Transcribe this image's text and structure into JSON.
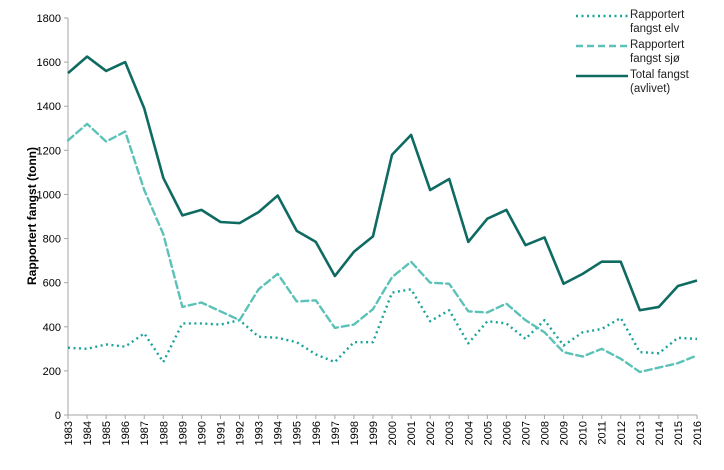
{
  "chart_data": {
    "type": "line",
    "title": "",
    "xlabel": "",
    "ylabel": "Rapportert fangst (tonn)",
    "ylim": [
      0,
      1800
    ],
    "yticks": [
      0,
      200,
      400,
      600,
      800,
      1000,
      1200,
      1400,
      1600,
      1800
    ],
    "grid": false,
    "legend_position": "top-right",
    "x": [
      1983,
      1984,
      1985,
      1986,
      1987,
      1988,
      1989,
      1990,
      1991,
      1992,
      1993,
      1994,
      1995,
      1996,
      1997,
      1998,
      1999,
      2000,
      2001,
      2002,
      2003,
      2004,
      2005,
      2006,
      2007,
      2008,
      2009,
      2010,
      2011,
      2012,
      2013,
      2014,
      2015,
      2016
    ],
    "series": [
      {
        "name": "Rapportert fangst elv",
        "style": "dotted",
        "color": "#1aa39a",
        "values": [
          305,
          300,
          320,
          310,
          370,
          240,
          415,
          415,
          410,
          430,
          355,
          350,
          330,
          275,
          240,
          330,
          330,
          555,
          570,
          425,
          475,
          325,
          425,
          415,
          345,
          430,
          315,
          375,
          390,
          440,
          285,
          280,
          350,
          345
        ]
      },
      {
        "name": "Rapportert fangst sjø",
        "style": "dashed",
        "color": "#5cc2b8",
        "values": [
          1245,
          1320,
          1240,
          1285,
          1020,
          820,
          490,
          510,
          470,
          430,
          570,
          640,
          515,
          520,
          395,
          410,
          480,
          625,
          695,
          600,
          595,
          470,
          465,
          505,
          430,
          375,
          285,
          265,
          300,
          255,
          195,
          215,
          235,
          270
        ]
      },
      {
        "name": "Total fangst (avlivet)",
        "style": "solid",
        "color": "#0f6b62",
        "values": [
          1550,
          1625,
          1560,
          1600,
          1390,
          1075,
          905,
          930,
          875,
          870,
          920,
          995,
          835,
          785,
          630,
          740,
          810,
          1180,
          1270,
          1020,
          1070,
          785,
          890,
          930,
          770,
          805,
          595,
          640,
          695,
          695,
          475,
          490,
          585,
          610
        ]
      }
    ]
  }
}
